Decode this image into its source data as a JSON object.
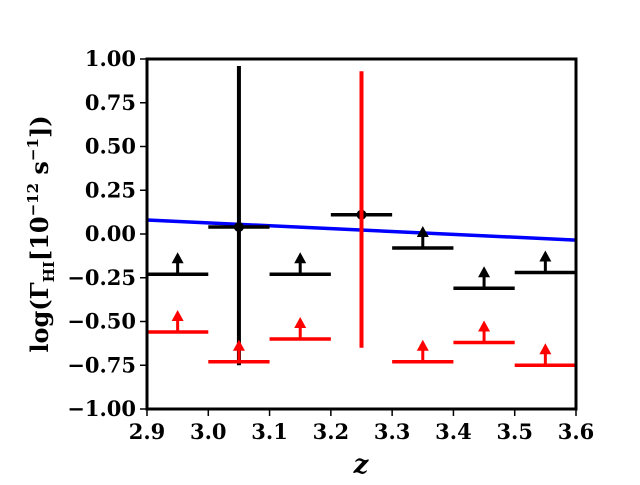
{
  "chart_data": {
    "type": "scatter",
    "xlabel": "z",
    "ylabel": "log(Γ",
    "ylabel_sub": "HI",
    "ylabel_mid": "[10",
    "ylabel_sup": "−12",
    "ylabel_unit": " s",
    "ylabel_unit_sup": "−1",
    "ylabel_end": "])",
    "xlim": [
      2.9,
      3.6
    ],
    "ylim": [
      -1.0,
      1.0
    ],
    "grid": false,
    "x_ticks": [
      {
        "value": 2.9,
        "label": "2.9"
      },
      {
        "value": 3.0,
        "label": "3.0"
      },
      {
        "value": 3.1,
        "label": "3.1"
      },
      {
        "value": 3.2,
        "label": "3.2"
      },
      {
        "value": 3.3,
        "label": "3.3"
      },
      {
        "value": 3.4,
        "label": "3.4"
      },
      {
        "value": 3.5,
        "label": "3.5"
      },
      {
        "value": 3.6,
        "label": "3.6"
      }
    ],
    "y_ticks": [
      {
        "value": 1.0,
        "label": "1.00"
      },
      {
        "value": 0.75,
        "label": "0.75"
      },
      {
        "value": 0.5,
        "label": "0.50"
      },
      {
        "value": 0.25,
        "label": "0.25"
      },
      {
        "value": 0.0,
        "label": "0.00"
      },
      {
        "value": -0.25,
        "label": "−0.25"
      },
      {
        "value": -0.5,
        "label": "−0.50"
      },
      {
        "value": -0.75,
        "label": "−0.75"
      },
      {
        "value": -1.0,
        "label": "−1.00"
      }
    ],
    "series": [
      {
        "color": "#000000",
        "points": [
          {
            "x": 2.95,
            "xerr": 0.05,
            "y": -0.23,
            "lower_limit": true
          },
          {
            "x": 3.05,
            "xerr": 0.05,
            "y": 0.04,
            "y_low": -0.75,
            "y_high": 0.96
          },
          {
            "x": 3.15,
            "xerr": 0.05,
            "y": -0.23,
            "lower_limit": true
          },
          {
            "x": 3.25,
            "xerr": 0.05,
            "y": 0.11,
            "y_low": -0.37,
            "y_high": 0.62
          },
          {
            "x": 3.35,
            "xerr": 0.05,
            "y": -0.08,
            "lower_limit": true
          },
          {
            "x": 3.45,
            "xerr": 0.05,
            "y": -0.31,
            "lower_limit": true
          },
          {
            "x": 3.55,
            "xerr": 0.05,
            "y": -0.22,
            "lower_limit": true
          }
        ]
      },
      {
        "color": "#ff0000",
        "points": [
          {
            "x": 2.95,
            "xerr": 0.05,
            "y": -0.56,
            "lower_limit": true
          },
          {
            "x": 3.05,
            "xerr": 0.05,
            "y": -0.73,
            "lower_limit": true
          },
          {
            "x": 3.15,
            "xerr": 0.05,
            "y": -0.6,
            "lower_limit": true
          },
          {
            "x": 3.25,
            "y_low": -0.65,
            "y_high": 0.93,
            "no_marker": true
          },
          {
            "x": 3.35,
            "xerr": 0.05,
            "y": -0.73,
            "lower_limit": true
          },
          {
            "x": 3.45,
            "xerr": 0.05,
            "y": -0.62,
            "lower_limit": true
          },
          {
            "x": 3.55,
            "xerr": 0.05,
            "y": -0.75,
            "lower_limit": true
          }
        ]
      }
    ],
    "lines": [
      {
        "color": "#0000ff",
        "x": [
          2.9,
          3.6
        ],
        "y": [
          0.08,
          -0.035
        ]
      }
    ]
  }
}
